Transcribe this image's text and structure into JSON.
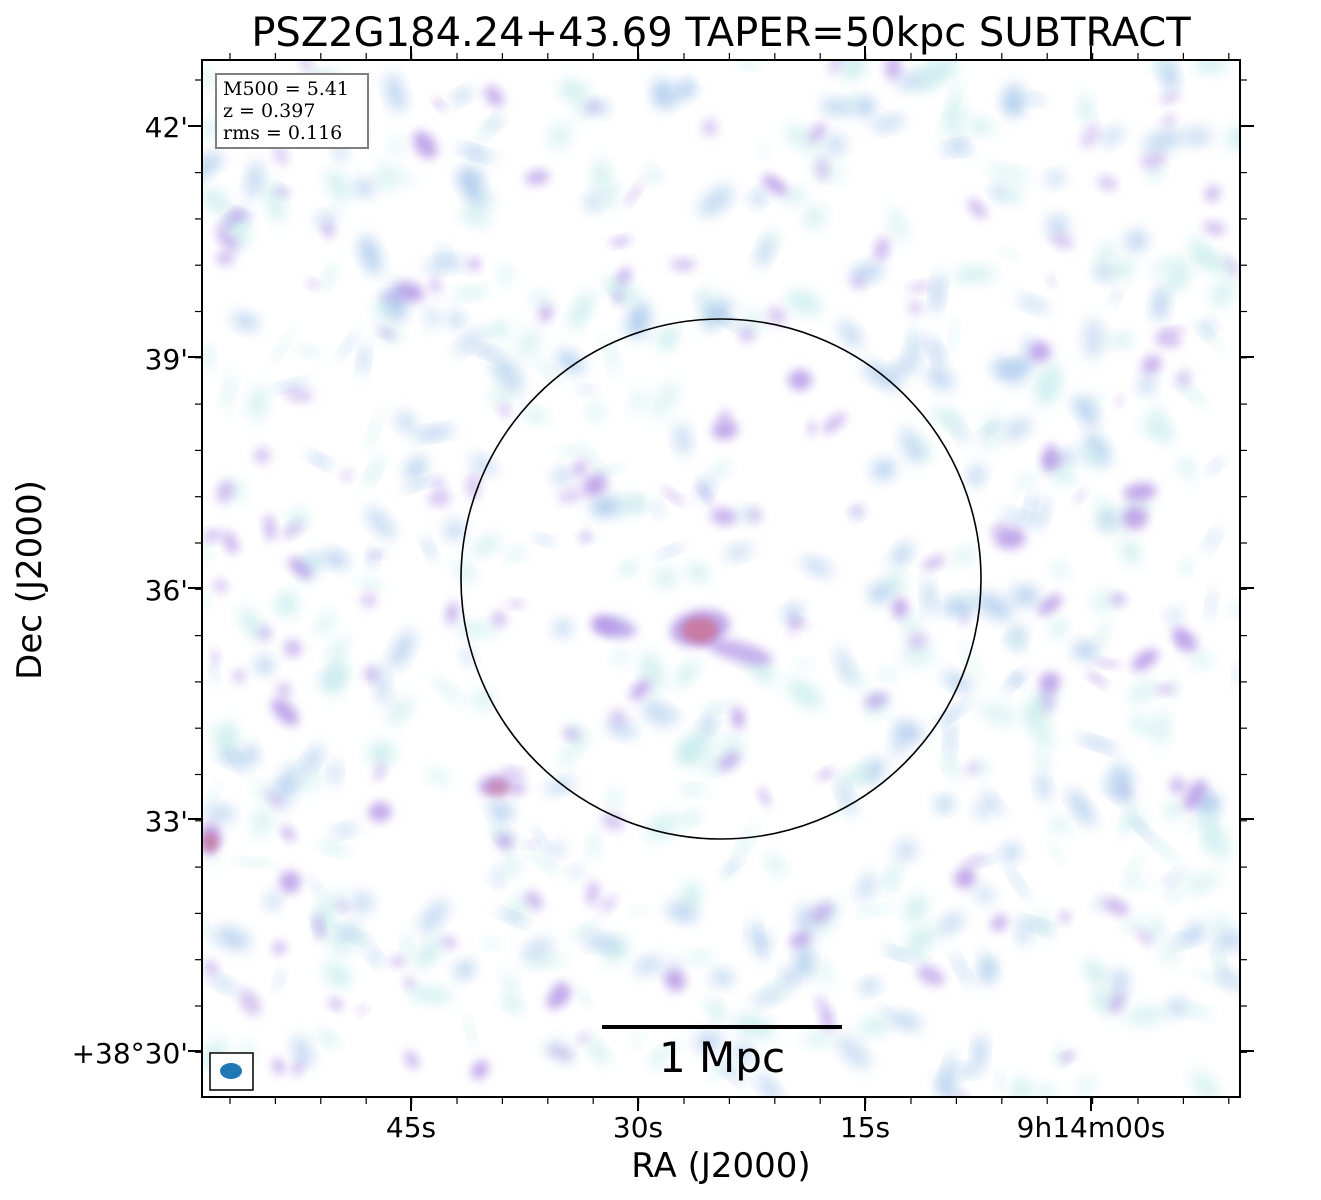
{
  "figure": {
    "title": "PSZ2G184.24+43.69 TAPER=50kpc SUBTRACT",
    "xlabel": "RA (J2000)",
    "ylabel": "Dec (J2000)",
    "x_ticks": [
      "45s",
      "30s",
      "15s",
      "9h14m00s"
    ],
    "y_ticks": [
      "42'",
      "39'",
      "36'",
      "33'",
      "+38°30'"
    ],
    "info_box": {
      "lines": [
        "M500 = 5.41",
        "z = 0.397",
        "rms = 0.116"
      ]
    },
    "scale_bar": {
      "label": "1 Mpc"
    },
    "colors": {
      "emission_low": "#c8ecec",
      "emission_mid": "#a8c8ec",
      "emission_high": "#b79be8",
      "emission_peak": "#c9799f",
      "beam": "#1f77b4",
      "circle": "#000000"
    }
  }
}
